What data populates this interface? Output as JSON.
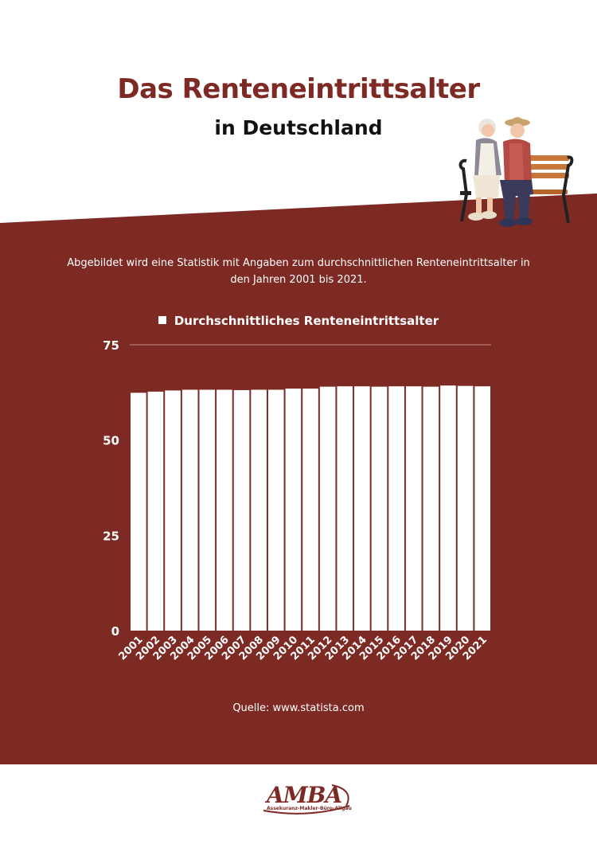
{
  "header": {
    "title": "Das Renteneintrittsalter",
    "subtitle": "in Deutschland"
  },
  "intro": "Abgebildet wird eine Statistik mit Angaben zum durchschnittlichen Renteneintrittsalter in den Jahren 2001 bis 2021.",
  "source": "Quelle: www.statista.com",
  "logo": {
    "text": "AMBA",
    "subtitle": "Assekuranz-Makler-Büro-Allgäu"
  },
  "colors": {
    "brand": "#7d2a24",
    "bars": "#ffffff",
    "text_on_brand": "#ffffff"
  },
  "chart_data": {
    "type": "bar",
    "legend": "Durchschnittliches Renteneintrittsalter",
    "legend_position": "top",
    "categories": [
      "2001",
      "2002",
      "2003",
      "2004",
      "2005",
      "2006",
      "2007",
      "2008",
      "2009",
      "2010",
      "2011",
      "2012",
      "2013",
      "2014",
      "2015",
      "2016",
      "2017",
      "2018",
      "2019",
      "2020",
      "2021"
    ],
    "values": [
      62.4,
      62.7,
      63.0,
      63.2,
      63.2,
      63.2,
      63.1,
      63.2,
      63.2,
      63.5,
      63.5,
      64.0,
      64.1,
      64.1,
      64.0,
      64.1,
      64.1,
      64.0,
      64.3,
      64.2,
      64.1
    ],
    "yticks": [
      0,
      25,
      50,
      75
    ],
    "ylim": [
      0,
      75
    ],
    "grid": "top line only"
  }
}
